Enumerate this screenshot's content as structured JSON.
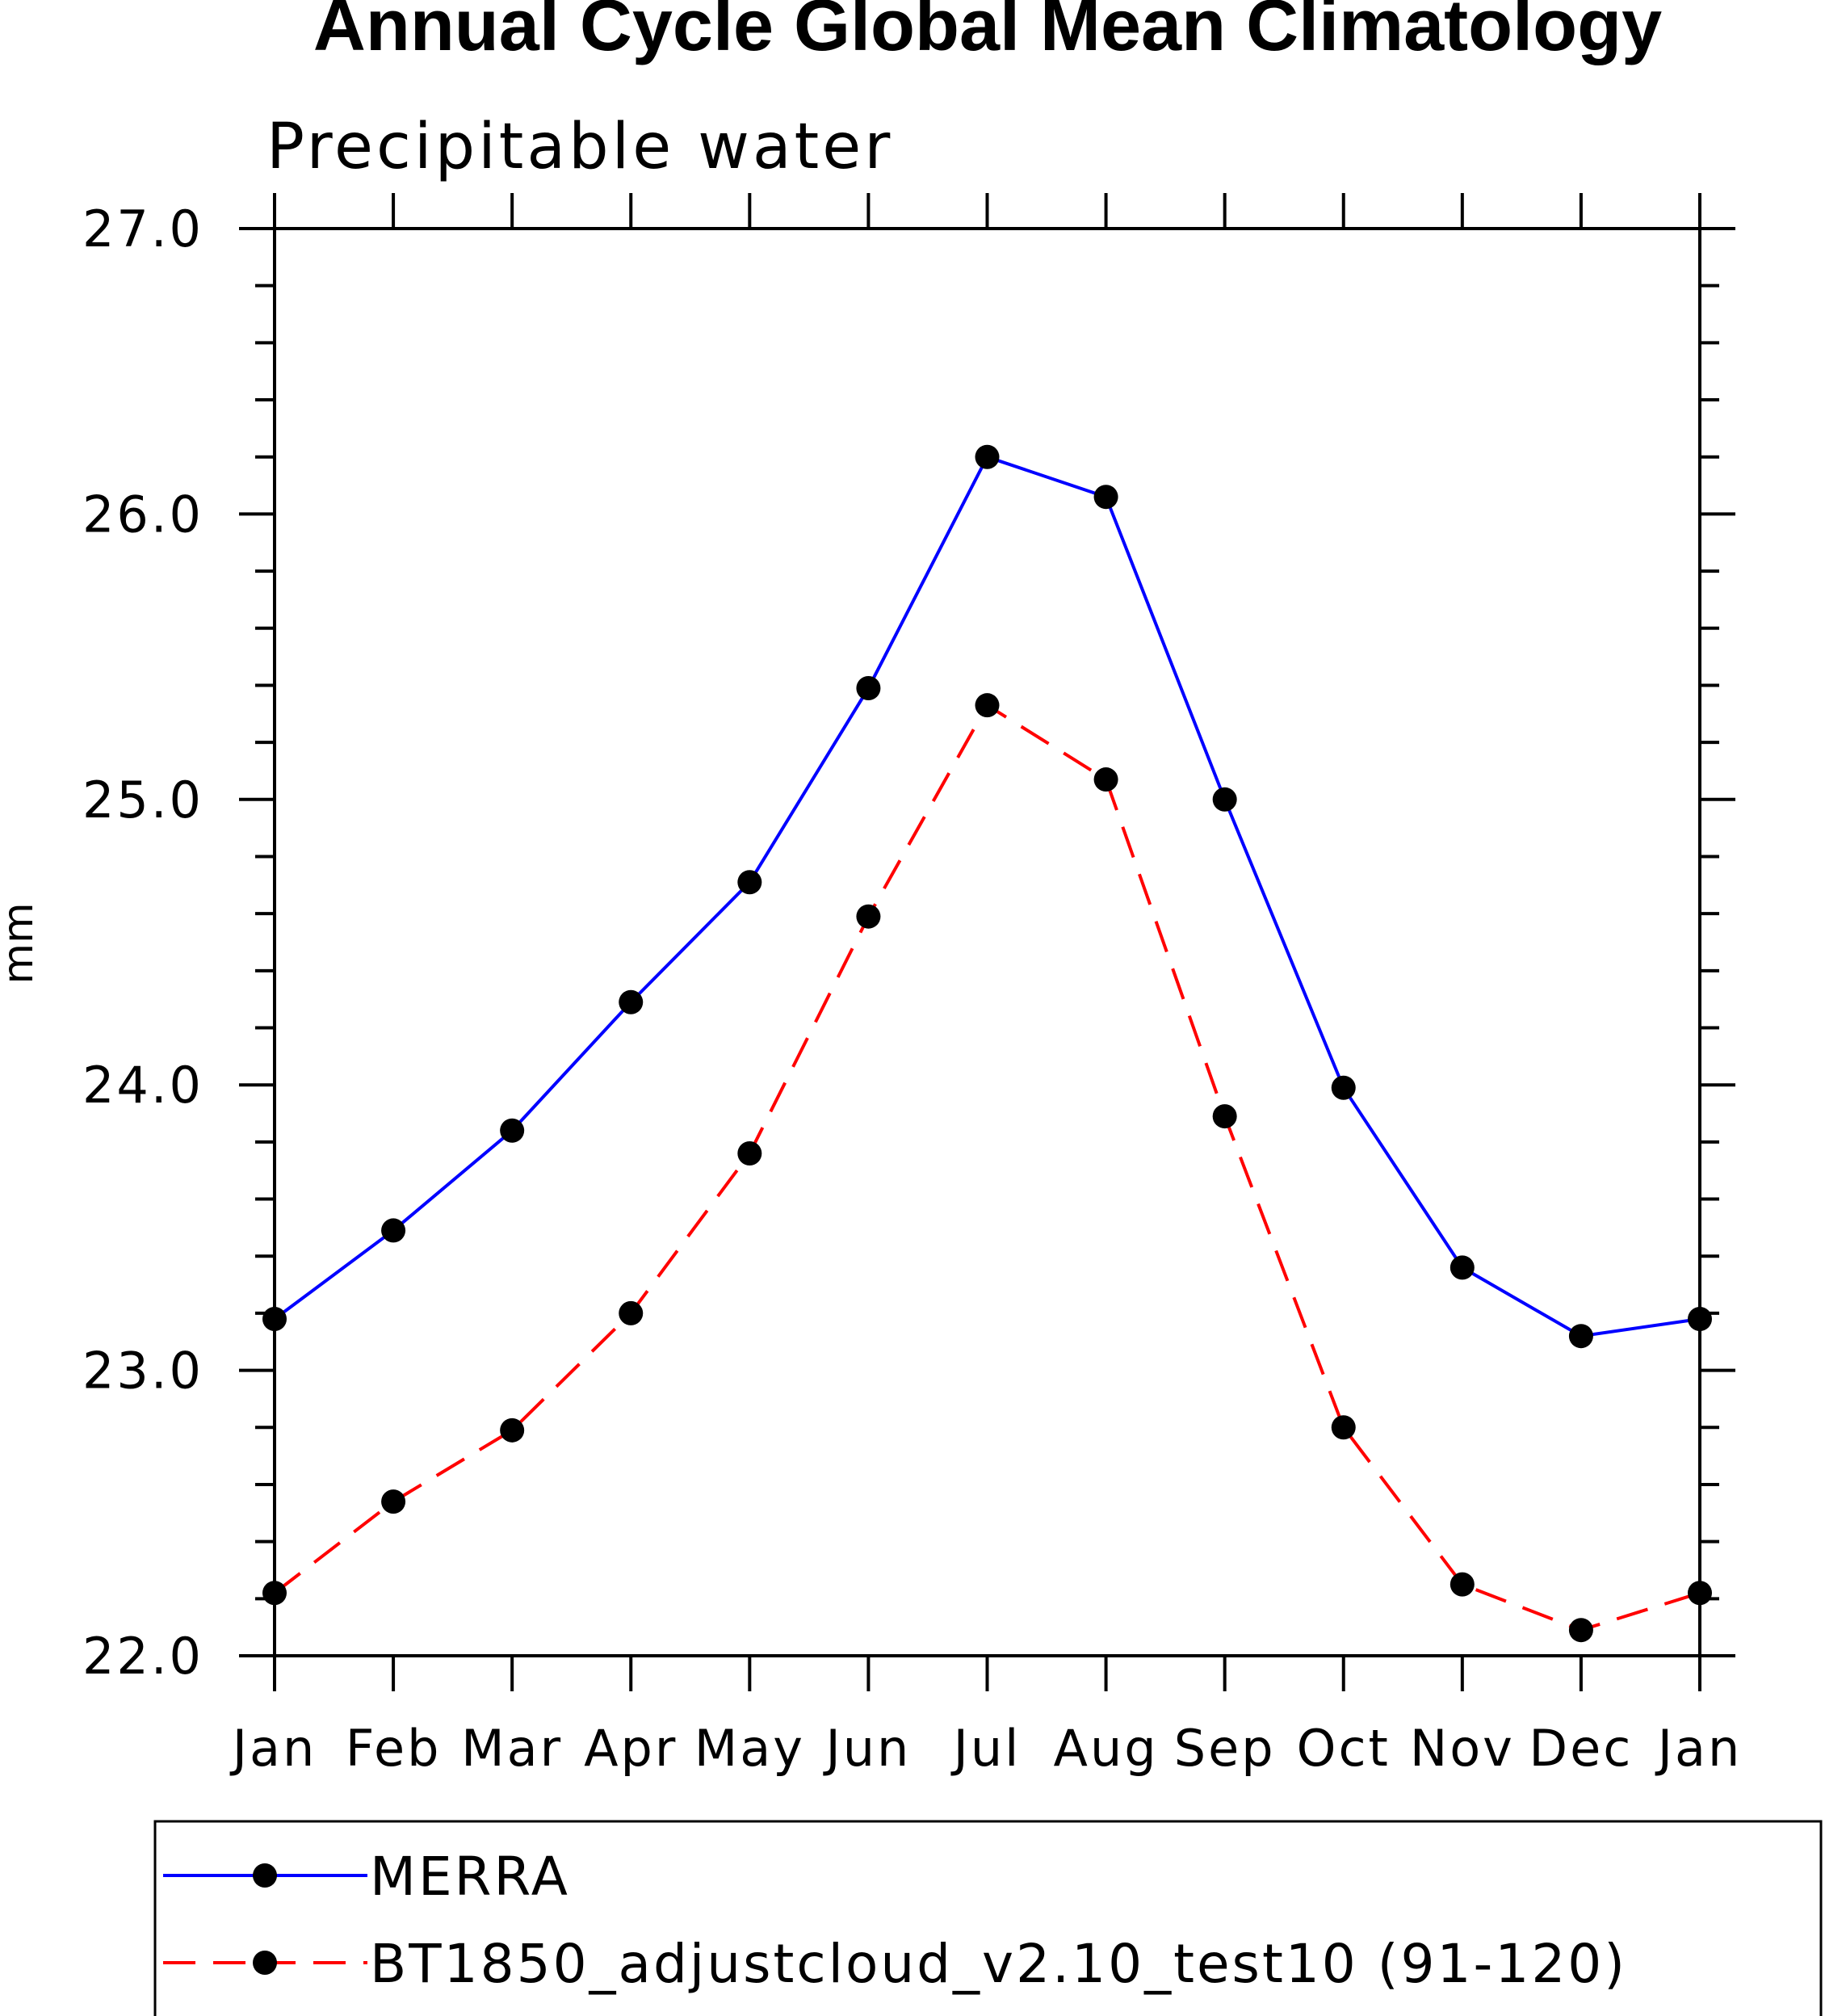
{
  "chart_data": {
    "type": "line",
    "title": "Annual Cycle Global Mean Climatology",
    "subtitle": "Precipitable water",
    "xlabel": "",
    "ylabel": "mm",
    "categories": [
      "Jan",
      "Feb",
      "Mar",
      "Apr",
      "May",
      "Jun",
      "Jul",
      "Aug",
      "Sep",
      "Oct",
      "Nov",
      "Dec",
      "Jan"
    ],
    "ylim": [
      22.0,
      27.0
    ],
    "yticks": [
      "22.0",
      "23.0",
      "24.0",
      "25.0",
      "26.0",
      "27.0"
    ],
    "ytick_values": [
      22.0,
      23.0,
      24.0,
      25.0,
      26.0,
      27.0
    ],
    "yminor_step": 0.2,
    "grid": false,
    "legend_position": "bottom",
    "series": [
      {
        "name": "MERRA",
        "color": "#0000ff",
        "line_style": "solid",
        "marker": "circle",
        "values": [
          23.18,
          23.49,
          23.84,
          24.29,
          24.71,
          25.39,
          26.2,
          26.06,
          25.0,
          23.99,
          23.36,
          23.12,
          23.18
        ]
      },
      {
        "name": "BT1850_adjustcloud_v2.10_test10 (91-120)",
        "color": "#ff0000",
        "line_style": "dashed",
        "marker": "circle",
        "values": [
          22.22,
          22.54,
          22.79,
          23.2,
          23.76,
          24.59,
          25.33,
          25.07,
          23.89,
          22.8,
          22.25,
          22.09,
          22.22
        ]
      }
    ]
  }
}
